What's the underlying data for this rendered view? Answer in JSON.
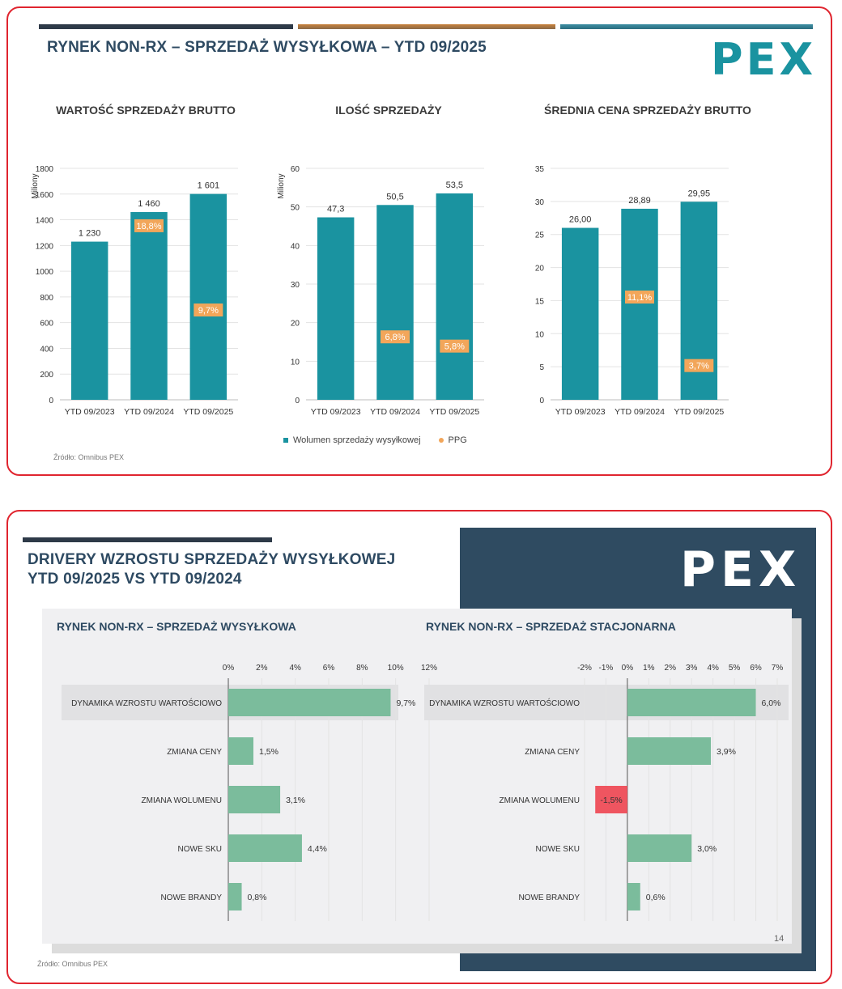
{
  "slide1": {
    "title": "RYNEK NON-RX – SPRZEDAŻ WYSYŁKOWA – YTD 09/2025",
    "logo": "PEX",
    "source": "Źródło: Omnibus PEX",
    "legend": {
      "volume": "Wolumen sprzedaży wysyłkowej",
      "ppg": "PPG"
    },
    "colors": {
      "bar": "#1a93a0",
      "ppg": "#f2a65a",
      "bar1": "#2e4a62",
      "bar2": "#c8813a",
      "bar3": "#3d8fa3"
    }
  },
  "chart_data": [
    {
      "type": "bar",
      "title": "WARTOŚĆ SPRZEDAŻY BRUTTO",
      "ylabel": "Miliony",
      "categories": [
        "YTD 09/2023",
        "YTD 09/2024",
        "YTD 09/2025"
      ],
      "values": [
        1230,
        1460,
        1601
      ],
      "value_labels": [
        "1 230",
        "1 460",
        "1 601"
      ],
      "ppg": [
        null,
        18.8,
        9.7
      ],
      "ppg_labels": [
        "",
        "18,8%",
        "9,7%"
      ],
      "ylim": [
        0,
        1800
      ],
      "yticks": [
        0,
        200,
        400,
        600,
        800,
        1000,
        1200,
        1400,
        1600,
        1800
      ]
    },
    {
      "type": "bar",
      "title": "ILOŚĆ SPRZEDAŻY",
      "ylabel": "Miliony",
      "categories": [
        "YTD 09/2023",
        "YTD 09/2024",
        "YTD 09/2025"
      ],
      "values": [
        47.3,
        50.5,
        53.5
      ],
      "value_labels": [
        "47,3",
        "50,5",
        "53,5"
      ],
      "ppg": [
        null,
        6.8,
        5.8
      ],
      "ppg_labels": [
        "",
        "6,8%",
        "5,8%"
      ],
      "ylim": [
        0,
        60
      ],
      "yticks": [
        0,
        10,
        20,
        30,
        40,
        50,
        60
      ]
    },
    {
      "type": "bar",
      "title": "ŚREDNIA CENA SPRZEDAŻY BRUTTO",
      "ylabel": "",
      "categories": [
        "YTD 09/2023",
        "YTD 09/2024",
        "YTD 09/2025"
      ],
      "values": [
        26.0,
        28.89,
        29.95
      ],
      "value_labels": [
        "26,00",
        "28,89",
        "29,95"
      ],
      "ppg": [
        null,
        11.1,
        3.7
      ],
      "ppg_labels": [
        "",
        "11,1%",
        "3,7%"
      ],
      "ylim": [
        0,
        35
      ],
      "yticks": [
        0,
        5,
        10,
        15,
        20,
        25,
        30,
        35
      ]
    },
    {
      "type": "bar",
      "orientation": "horizontal",
      "title": "RYNEK NON-RX – SPRZEDAŻ WYSYŁKOWA",
      "categories": [
        "DYNAMIKA WZROSTU WARTOŚCIOWO",
        "ZMIANA CENY",
        "ZMIANA WOLUMENU",
        "NOWE SKU",
        "NOWE BRANDY"
      ],
      "values": [
        9.7,
        1.5,
        3.1,
        4.4,
        0.8
      ],
      "value_labels": [
        "9,7%",
        "1,5%",
        "3,1%",
        "4,4%",
        "0,8%"
      ],
      "xlim": [
        0,
        12
      ],
      "xticks": [
        0,
        2,
        4,
        6,
        8,
        10,
        12
      ],
      "xtick_labels": [
        "0%",
        "2%",
        "4%",
        "6%",
        "8%",
        "10%",
        "12%"
      ]
    },
    {
      "type": "bar",
      "orientation": "horizontal",
      "title": "RYNEK NON-RX – SPRZEDAŻ STACJONARNA",
      "categories": [
        "DYNAMIKA WZROSTU WARTOŚCIOWO",
        "ZMIANA CENY",
        "ZMIANA WOLUMENU",
        "NOWE SKU",
        "NOWE BRANDY"
      ],
      "values": [
        6.0,
        3.9,
        -1.5,
        3.0,
        0.6
      ],
      "value_labels": [
        "6,0%",
        "3,9%",
        "-1,5%",
        "3,0%",
        "0,6%"
      ],
      "xlim": [
        -2,
        7
      ],
      "xticks": [
        -2,
        -1,
        0,
        1,
        2,
        3,
        4,
        5,
        6,
        7
      ],
      "xtick_labels": [
        "-2%",
        "-1%",
        "0%",
        "1%",
        "2%",
        "3%",
        "4%",
        "5%",
        "6%",
        "7%"
      ]
    }
  ],
  "slide2": {
    "title_line1": "DRIVERY WZROSTU SPRZEDAŻY WYSYŁKOWEJ",
    "title_line2": "YTD 09/2025 VS YTD 09/2024",
    "logo": "PEX",
    "page_number": "14",
    "source": "Źródło: Omnibus PEX",
    "colors": {
      "positive": "#7bbc9c",
      "negative": "#ef5560",
      "panel": "#2f4b61"
    }
  }
}
